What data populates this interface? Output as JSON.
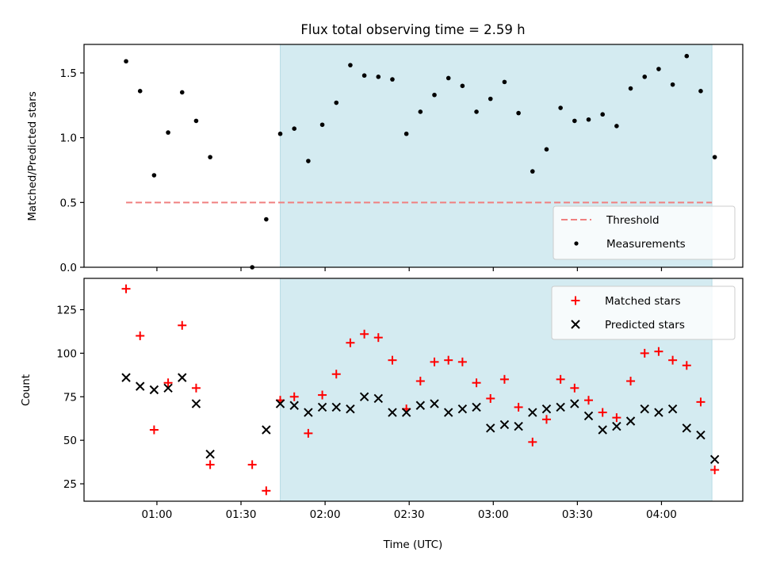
{
  "chart_data": [
    {
      "type": "scatter",
      "title": "Flux total observing time = 2.59 h",
      "xlabel": "",
      "ylabel": "Matched/Predicted stars",
      "xlim": [
        "00:34",
        "04:29"
      ],
      "ylim": [
        0,
        1.72
      ],
      "grid": false,
      "legend": "lower-right",
      "yticks": [
        0.0,
        0.5,
        1.0,
        1.5
      ],
      "ytick_labels": [
        "0.0",
        "0.5",
        "1.0",
        "1.5"
      ],
      "observing_window": [
        "01:44",
        "04:18"
      ],
      "window_color": "#d4ebf1",
      "series": [
        {
          "name": "Threshold",
          "style": "dashed-line",
          "color": "#f08080",
          "x": [
            "00:49",
            "04:18"
          ],
          "y": [
            0.5,
            0.5
          ]
        },
        {
          "name": "Measurements",
          "style": "dot",
          "color": "#000000",
          "x": [
            "00:49",
            "00:54",
            "00:59",
            "01:04",
            "01:09",
            "01:14",
            "01:19",
            "01:34",
            "01:39",
            "01:44",
            "01:49",
            "01:54",
            "01:59",
            "02:04",
            "02:09",
            "02:14",
            "02:19",
            "02:24",
            "02:29",
            "02:34",
            "02:39",
            "02:44",
            "02:49",
            "02:54",
            "02:59",
            "03:04",
            "03:09",
            "03:14",
            "03:19",
            "03:24",
            "03:29",
            "03:34",
            "03:39",
            "03:44",
            "03:49",
            "03:54",
            "03:59",
            "04:04",
            "04:09",
            "04:14",
            "04:19"
          ],
          "y": [
            1.59,
            1.36,
            0.71,
            1.04,
            1.35,
            1.13,
            0.85,
            0.0,
            0.37,
            1.03,
            1.07,
            0.82,
            1.1,
            1.27,
            1.56,
            1.48,
            1.47,
            1.45,
            1.03,
            1.2,
            1.33,
            1.46,
            1.4,
            1.2,
            1.3,
            1.43,
            1.19,
            0.74,
            0.91,
            1.23,
            1.13,
            1.14,
            1.18,
            1.09,
            1.38,
            1.47,
            1.53,
            1.41,
            1.63,
            1.36,
            0.85
          ]
        }
      ]
    },
    {
      "type": "scatter",
      "title": "",
      "xlabel": "Time (UTC)",
      "ylabel": "Count",
      "xlim": [
        "00:34",
        "04:29"
      ],
      "ylim": [
        15,
        143
      ],
      "grid": false,
      "legend": "upper-right",
      "yticks": [
        25,
        50,
        75,
        100,
        125
      ],
      "ytick_labels": [
        "25",
        "50",
        "75",
        "100",
        "125"
      ],
      "xticks": [
        "01:00",
        "01:30",
        "02:00",
        "02:30",
        "03:00",
        "03:30",
        "04:00"
      ],
      "xtick_labels": [
        "01:00",
        "01:30",
        "02:00",
        "02:30",
        "03:00",
        "03:30",
        "04:00"
      ],
      "observing_window": [
        "01:44",
        "04:18"
      ],
      "window_color": "#d4ebf1",
      "series": [
        {
          "name": "Matched stars",
          "style": "plus",
          "color": "#ff0000",
          "x": [
            "00:49",
            "00:54",
            "00:59",
            "01:04",
            "01:09",
            "01:14",
            "01:19",
            "01:34",
            "01:39",
            "01:44",
            "01:49",
            "01:54",
            "01:59",
            "02:04",
            "02:09",
            "02:14",
            "02:19",
            "02:24",
            "02:29",
            "02:34",
            "02:39",
            "02:44",
            "02:49",
            "02:54",
            "02:59",
            "03:04",
            "03:09",
            "03:14",
            "03:19",
            "03:24",
            "03:29",
            "03:34",
            "03:39",
            "03:44",
            "03:49",
            "03:54",
            "03:59",
            "04:04",
            "04:09",
            "04:14",
            "04:19"
          ],
          "y": [
            137,
            110,
            56,
            83,
            116,
            80,
            36,
            36,
            21,
            73,
            75,
            54,
            76,
            88,
            106,
            111,
            109,
            96,
            68,
            84,
            95,
            96,
            95,
            83,
            74,
            85,
            69,
            49,
            62,
            85,
            80,
            73,
            66,
            63,
            84,
            100,
            101,
            96,
            93,
            72,
            33
          ]
        },
        {
          "name": "Predicted stars",
          "style": "x",
          "color": "#000000",
          "x": [
            "00:49",
            "00:54",
            "00:59",
            "01:04",
            "01:09",
            "01:14",
            "01:19",
            "01:39",
            "01:44",
            "01:49",
            "01:54",
            "01:59",
            "02:04",
            "02:09",
            "02:14",
            "02:19",
            "02:24",
            "02:29",
            "02:34",
            "02:39",
            "02:44",
            "02:49",
            "02:54",
            "02:59",
            "03:04",
            "03:09",
            "03:14",
            "03:19",
            "03:24",
            "03:29",
            "03:34",
            "03:39",
            "03:44",
            "03:49",
            "03:54",
            "03:59",
            "04:04",
            "04:09",
            "04:14",
            "04:19"
          ],
          "y": [
            86,
            81,
            79,
            80,
            86,
            71,
            42,
            56,
            71,
            70,
            66,
            69,
            69,
            68,
            75,
            74,
            66,
            66,
            70,
            71,
            66,
            68,
            69,
            57,
            59,
            58,
            66,
            68,
            69,
            71,
            64,
            56,
            58,
            61,
            68,
            66,
            68,
            57,
            53,
            39
          ]
        }
      ]
    }
  ]
}
